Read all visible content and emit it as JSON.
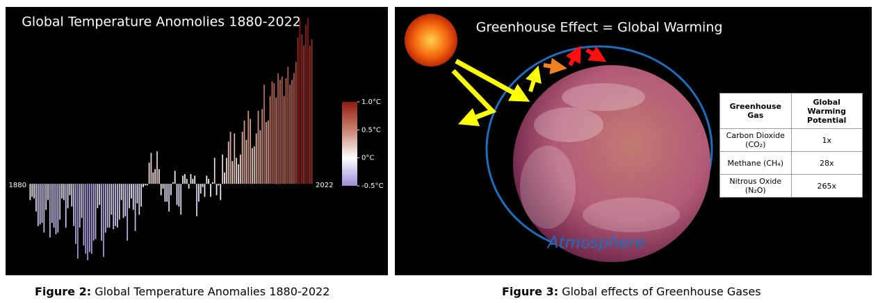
{
  "chart_data": {
    "type": "bar",
    "title": "Global Temperature Anomolies 1880-2022",
    "x": [
      1880,
      1881,
      1882,
      1883,
      1884,
      1885,
      1886,
      1887,
      1888,
      1889,
      1890,
      1891,
      1892,
      1893,
      1894,
      1895,
      1896,
      1897,
      1898,
      1899,
      1900,
      1901,
      1902,
      1903,
      1904,
      1905,
      1906,
      1907,
      1908,
      1909,
      1910,
      1911,
      1912,
      1913,
      1914,
      1915,
      1916,
      1917,
      1918,
      1919,
      1920,
      1921,
      1922,
      1923,
      1924,
      1925,
      1926,
      1927,
      1928,
      1929,
      1930,
      1931,
      1932,
      1933,
      1934,
      1935,
      1936,
      1937,
      1938,
      1939,
      1940,
      1941,
      1942,
      1943,
      1944,
      1945,
      1946,
      1947,
      1948,
      1949,
      1950,
      1951,
      1952,
      1953,
      1954,
      1955,
      1956,
      1957,
      1958,
      1959,
      1960,
      1961,
      1962,
      1963,
      1964,
      1965,
      1966,
      1967,
      1968,
      1969,
      1970,
      1971,
      1972,
      1973,
      1974,
      1975,
      1976,
      1977,
      1978,
      1979,
      1980,
      1981,
      1982,
      1983,
      1984,
      1985,
      1986,
      1987,
      1988,
      1989,
      1990,
      1991,
      1992,
      1993,
      1994,
      1995,
      1996,
      1997,
      1998,
      1999,
      2000,
      2001,
      2002,
      2003,
      2004,
      2005,
      2006,
      2007,
      2008,
      2009,
      2010,
      2011,
      2012,
      2013,
      2014,
      2015,
      2016,
      2017,
      2018,
      2019,
      2020,
      2021,
      2022
    ],
    "values": [
      -0.1,
      -0.08,
      -0.09,
      -0.17,
      -0.26,
      -0.25,
      -0.24,
      -0.3,
      -0.16,
      -0.1,
      -0.33,
      -0.24,
      -0.27,
      -0.31,
      -0.3,
      -0.22,
      -0.09,
      -0.1,
      -0.27,
      -0.15,
      -0.07,
      -0.14,
      -0.26,
      -0.37,
      -0.46,
      -0.27,
      -0.21,
      -0.38,
      -0.43,
      -0.47,
      -0.42,
      -0.43,
      -0.35,
      -0.34,
      -0.15,
      -0.13,
      -0.35,
      -0.45,
      -0.3,
      -0.27,
      -0.27,
      -0.19,
      -0.28,
      -0.26,
      -0.27,
      -0.22,
      -0.1,
      -0.21,
      -0.2,
      -0.35,
      -0.15,
      -0.09,
      -0.16,
      -0.29,
      -0.12,
      -0.19,
      -0.14,
      -0.02,
      -0.01,
      -0.01,
      0.13,
      0.19,
      0.07,
      0.09,
      0.2,
      0.09,
      -0.07,
      -0.03,
      -0.11,
      -0.11,
      -0.17,
      -0.07,
      0.01,
      0.08,
      -0.13,
      -0.14,
      -0.19,
      0.05,
      0.06,
      0.03,
      -0.03,
      0.06,
      0.03,
      0.05,
      -0.2,
      -0.11,
      -0.06,
      -0.02,
      -0.08,
      0.05,
      0.03,
      -0.08,
      0.01,
      0.16,
      -0.07,
      -0.01,
      -0.1,
      0.18,
      0.07,
      0.16,
      0.26,
      0.32,
      0.14,
      0.31,
      0.16,
      0.12,
      0.18,
      0.32,
      0.39,
      0.27,
      0.45,
      0.4,
      0.22,
      0.23,
      0.31,
      0.45,
      0.33,
      0.46,
      0.61,
      0.38,
      0.39,
      0.54,
      0.63,
      0.62,
      0.53,
      0.68,
      0.64,
      0.66,
      0.54,
      0.65,
      0.72,
      0.61,
      0.64,
      0.68,
      0.75,
      0.9,
      1.01,
      0.92,
      0.85,
      0.98,
      1.02,
      0.85,
      0.89
    ],
    "ylim": [
      -0.55,
      1.08
    ],
    "colorscale": [
      "#9d8ad6",
      "#ffffff",
      "#c8826f",
      "#8e1b12"
    ],
    "clim": [
      -0.5,
      1.0
    ],
    "colorbar_ticks": [
      {
        "value": 1.0,
        "label": "1.0°C"
      },
      {
        "value": 0.5,
        "label": "0.5°C"
      },
      {
        "value": 0,
        "label": "0°C"
      },
      {
        "value": -0.5,
        "label": "-0.5°C"
      }
    ]
  },
  "diagram": {
    "title": "Greenhouse Effect = Global Warming",
    "atmosphere_label": "Atmosphere",
    "table": {
      "header": [
        "Greenhouse Gas",
        "Global Warming Potential"
      ],
      "rows": [
        [
          "Carbon Dioxide (CO₂)",
          "1x"
        ],
        [
          "Methane (CH₄)",
          "28x"
        ],
        [
          "Nitrous Oxide (N₂O)",
          "265x"
        ]
      ]
    }
  },
  "captions": [
    {
      "label": "Figure 2:",
      "text": "Global Temperature Anomalies 1880-2022"
    },
    {
      "label": "Figure 3:",
      "text": "Global effects of Greenhouse Gases"
    }
  ]
}
